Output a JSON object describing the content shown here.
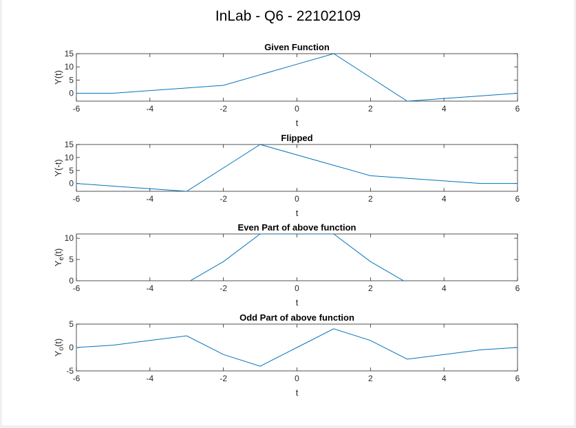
{
  "figure": {
    "title": "InLab - Q6 - 22102109"
  },
  "colors": {
    "line": "#0072BD",
    "axes": "#262626",
    "background": "#ffffff"
  },
  "chart_data": [
    {
      "type": "line",
      "title": "Given Function",
      "xlabel": "t",
      "ylabel": "Y(t)",
      "xlim": [
        -6,
        6
      ],
      "ylim": [
        -3,
        15
      ],
      "xticks": [
        -6,
        -4,
        -2,
        0,
        2,
        4,
        6
      ],
      "yticks": [
        0,
        5,
        10,
        15
      ],
      "grid": false,
      "x": [
        -6,
        -5,
        -4,
        -3,
        -2,
        -1,
        0,
        1,
        2,
        3,
        4,
        5,
        6
      ],
      "y": [
        0,
        0,
        1,
        2,
        3,
        7,
        11,
        15,
        6,
        -3,
        -2,
        -1,
        0
      ]
    },
    {
      "type": "line",
      "title": "Flipped",
      "xlabel": "t",
      "ylabel": "Y(-t)",
      "xlim": [
        -6,
        6
      ],
      "ylim": [
        -3,
        15
      ],
      "xticks": [
        -6,
        -4,
        -2,
        0,
        2,
        4,
        6
      ],
      "yticks": [
        0,
        5,
        10,
        15
      ],
      "grid": false,
      "x": [
        -6,
        -5,
        -4,
        -3,
        -2,
        -1,
        0,
        1,
        2,
        3,
        4,
        5,
        6
      ],
      "y": [
        0,
        -1,
        -2,
        -3,
        6,
        15,
        11,
        7,
        3,
        2,
        1,
        0,
        0
      ]
    },
    {
      "type": "line",
      "title": "Even Part of above function",
      "xlabel": "t",
      "ylabel": "Ye(t)",
      "ylabel_main": "Y",
      "ylabel_sub": "e",
      "ylabel_tail": "(t)",
      "xlim": [
        -6,
        6
      ],
      "ylim": [
        0,
        11
      ],
      "xticks": [
        -6,
        -4,
        -2,
        0,
        2,
        4,
        6
      ],
      "yticks": [
        0,
        5,
        10
      ],
      "grid": false,
      "x": [
        -6,
        -5,
        -4,
        -3,
        -2,
        -1,
        0,
        1,
        2,
        3,
        4,
        5,
        6
      ],
      "y": [
        0,
        -0.5,
        -0.5,
        -0.5,
        4.5,
        11,
        11,
        11,
        4.5,
        -0.5,
        -0.5,
        -0.5,
        0
      ]
    },
    {
      "type": "line",
      "title": "Odd Part of  above function",
      "xlabel": "t",
      "ylabel": "Yo(t)",
      "ylabel_main": "Y",
      "ylabel_sub": "o",
      "ylabel_tail": "(t)",
      "xlim": [
        -6,
        6
      ],
      "ylim": [
        -5,
        5
      ],
      "xticks": [
        -6,
        -4,
        -2,
        0,
        2,
        4,
        6
      ],
      "yticks": [
        -5,
        0,
        5
      ],
      "grid": false,
      "x": [
        -6,
        -5,
        -4,
        -3,
        -2,
        -1,
        0,
        1,
        2,
        3,
        4,
        5,
        6
      ],
      "y": [
        0,
        0.5,
        1.5,
        2.5,
        -1.5,
        -4,
        0,
        4,
        1.5,
        -2.5,
        -1.5,
        -0.5,
        0
      ]
    }
  ]
}
